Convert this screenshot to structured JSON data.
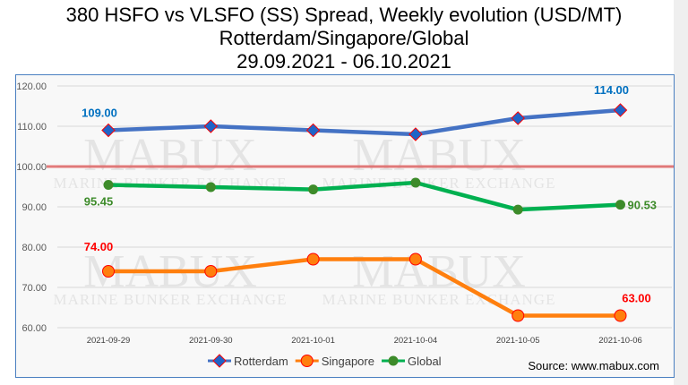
{
  "chart_data": {
    "type": "line",
    "title": [
      "380 HSFO vs VLSFO (SS) Spread, Weekly evolution (USD/MT)",
      "Rotterdam/Singapore/Global",
      "29.09.2021 - 06.10.2021"
    ],
    "categories": [
      "2021-09-29",
      "2021-09-30",
      "2021-10-01",
      "2021-10-04",
      "2021-10-05",
      "2021-10-06"
    ],
    "ylim": [
      60,
      120
    ],
    "yticks": [
      "60.00",
      "70.00",
      "80.00",
      "90.00",
      "100.00",
      "110.00",
      "120.00"
    ],
    "reference_line": 100,
    "series": [
      {
        "name": "Rotterdam",
        "color": "#4472c4",
        "marker": "diamond",
        "values": [
          109,
          110,
          109,
          108,
          112,
          114
        ],
        "labels": {
          "0": "109.00",
          "5": "114.00"
        },
        "label_color": "#0070c0"
      },
      {
        "name": "Singapore",
        "color": "#ff7f0e",
        "marker": "circle",
        "values": [
          74,
          74,
          77,
          77,
          63,
          63
        ],
        "labels": {
          "0": "74.00",
          "5": "63.00"
        },
        "label_color": "#ff0000"
      },
      {
        "name": "Global",
        "color": "#00b050",
        "marker": "dot",
        "values": [
          95.45,
          94.9,
          94.3,
          96.0,
          89.3,
          90.53
        ],
        "labels": {
          "0": "95.45",
          "5": "90.53"
        },
        "label_color": "#3d8b2a"
      }
    ],
    "legend_position": "bottom",
    "source": "Source: www.mabux.com",
    "watermark": "MABUX Marine Bunker Exchange"
  }
}
